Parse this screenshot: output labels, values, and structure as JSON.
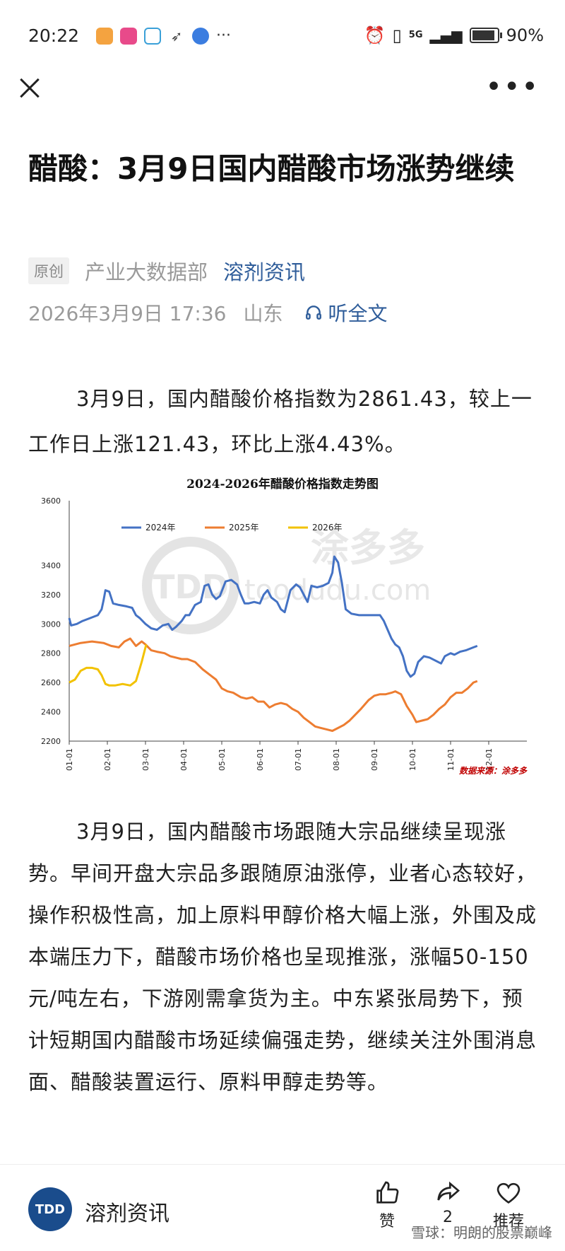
{
  "status_bar": {
    "time": "20:22",
    "network": "5G",
    "battery": "90%",
    "battery_level": 0.9
  },
  "article": {
    "title": "醋酸：3月9日国内醋酸市场涨势继续",
    "tag": "原创",
    "department": "产业大数据部",
    "source": "溶剂资讯",
    "date": "2026年3月9日 17:36",
    "location": "山东",
    "listen_label": "听全文",
    "para1": "3月9日，国内醋酸价格指数为2861.43，较上一工作日上涨121.43，环比上涨4.43%。",
    "para2": "3月9日，国内醋酸市场跟随大宗品继续呈现涨势。早间开盘大宗品多跟随原油涨停，业者心态较好，操作积极性高，加上原料甲醇价格大幅上涨，外围及成本端压力下，醋酸市场价格也呈现推涨，涨幅50-150元/吨左右，下游刚需拿货为主。中东紧张局势下，预计短期国内醋酸市场延续偏强走势，继续关注外围消息面、醋酸装置运行、原料甲醇走势等。"
  },
  "chart_data": {
    "type": "line",
    "title": "2024-2026年醋酸价格指数走势图",
    "xlabel": "",
    "ylabel": "",
    "ylim": [
      2200,
      3600
    ],
    "yticks": [
      2200,
      2400,
      2600,
      2800,
      3000,
      3200,
      3400,
      3600
    ],
    "categories": [
      "01-01",
      "02-01",
      "03-01",
      "04-01",
      "05-01",
      "06-01",
      "07-01",
      "08-01",
      "09-01",
      "10-01",
      "11-01",
      "12-01"
    ],
    "x_domain": [
      0,
      12
    ],
    "legend_position": "top",
    "watermark": "toodudu.com",
    "watermark_cn": "涂多多",
    "source_note": "数据来源：涂多多",
    "series": [
      {
        "name": "2024年",
        "color": "#4472c4",
        "points": [
          [
            0,
            3040
          ],
          [
            0.05,
            2990
          ],
          [
            0.2,
            3000
          ],
          [
            0.35,
            3020
          ],
          [
            0.55,
            3040
          ],
          [
            0.75,
            3060
          ],
          [
            0.85,
            3100
          ],
          [
            0.9,
            3160
          ],
          [
            0.95,
            3230
          ],
          [
            1.05,
            3220
          ],
          [
            1.15,
            3140
          ],
          [
            1.3,
            3130
          ],
          [
            1.5,
            3120
          ],
          [
            1.65,
            3110
          ],
          [
            1.75,
            3060
          ],
          [
            1.85,
            3040
          ],
          [
            2.0,
            3000
          ],
          [
            2.15,
            2970
          ],
          [
            2.3,
            2960
          ],
          [
            2.45,
            2990
          ],
          [
            2.6,
            3000
          ],
          [
            2.7,
            2960
          ],
          [
            2.8,
            2980
          ],
          [
            2.95,
            3020
          ],
          [
            3.05,
            3060
          ],
          [
            3.15,
            3060
          ],
          [
            3.3,
            3130
          ],
          [
            3.45,
            3150
          ],
          [
            3.55,
            3260
          ],
          [
            3.65,
            3270
          ],
          [
            3.75,
            3200
          ],
          [
            3.85,
            3170
          ],
          [
            3.95,
            3190
          ],
          [
            4.1,
            3290
          ],
          [
            4.25,
            3300
          ],
          [
            4.4,
            3270
          ],
          [
            4.5,
            3200
          ],
          [
            4.6,
            3140
          ],
          [
            4.7,
            3140
          ],
          [
            4.85,
            3150
          ],
          [
            5.0,
            3140
          ],
          [
            5.1,
            3200
          ],
          [
            5.2,
            3230
          ],
          [
            5.3,
            3180
          ],
          [
            5.45,
            3150
          ],
          [
            5.55,
            3100
          ],
          [
            5.65,
            3080
          ],
          [
            5.8,
            3230
          ],
          [
            5.95,
            3270
          ],
          [
            6.05,
            3250
          ],
          [
            6.15,
            3200
          ],
          [
            6.25,
            3150
          ],
          [
            6.35,
            3260
          ],
          [
            6.5,
            3250
          ],
          [
            6.65,
            3260
          ],
          [
            6.8,
            3280
          ],
          [
            6.9,
            3350
          ],
          [
            6.95,
            3460
          ],
          [
            7.05,
            3420
          ],
          [
            7.15,
            3280
          ],
          [
            7.25,
            3100
          ],
          [
            7.4,
            3070
          ],
          [
            7.6,
            3060
          ],
          [
            7.85,
            3060
          ],
          [
            8.0,
            3060
          ],
          [
            8.15,
            3060
          ],
          [
            8.25,
            3020
          ],
          [
            8.35,
            2960
          ],
          [
            8.45,
            2900
          ],
          [
            8.55,
            2860
          ],
          [
            8.65,
            2840
          ],
          [
            8.75,
            2780
          ],
          [
            8.85,
            2680
          ],
          [
            8.95,
            2640
          ],
          [
            9.05,
            2660
          ],
          [
            9.15,
            2740
          ],
          [
            9.3,
            2780
          ],
          [
            9.45,
            2770
          ],
          [
            9.6,
            2750
          ],
          [
            9.75,
            2730
          ],
          [
            9.85,
            2780
          ],
          [
            10.0,
            2800
          ],
          [
            10.1,
            2790
          ],
          [
            10.25,
            2810
          ],
          [
            10.4,
            2820
          ],
          [
            10.6,
            2840
          ],
          [
            10.7,
            2850
          ]
        ]
      },
      {
        "name": "2025年",
        "color": "#ed7d31",
        "points": [
          [
            0,
            2850
          ],
          [
            0.3,
            2870
          ],
          [
            0.6,
            2880
          ],
          [
            0.9,
            2870
          ],
          [
            1.1,
            2850
          ],
          [
            1.3,
            2840
          ],
          [
            1.45,
            2880
          ],
          [
            1.6,
            2900
          ],
          [
            1.75,
            2850
          ],
          [
            1.9,
            2880
          ],
          [
            2.0,
            2860
          ],
          [
            2.15,
            2820
          ],
          [
            2.3,
            2810
          ],
          [
            2.5,
            2800
          ],
          [
            2.65,
            2780
          ],
          [
            2.8,
            2770
          ],
          [
            2.95,
            2760
          ],
          [
            3.1,
            2760
          ],
          [
            3.3,
            2740
          ],
          [
            3.5,
            2690
          ],
          [
            3.7,
            2650
          ],
          [
            3.85,
            2620
          ],
          [
            4.0,
            2560
          ],
          [
            4.15,
            2540
          ],
          [
            4.3,
            2530
          ],
          [
            4.5,
            2500
          ],
          [
            4.65,
            2490
          ],
          [
            4.8,
            2500
          ],
          [
            4.95,
            2470
          ],
          [
            5.1,
            2470
          ],
          [
            5.25,
            2430
          ],
          [
            5.4,
            2450
          ],
          [
            5.55,
            2460
          ],
          [
            5.7,
            2450
          ],
          [
            5.85,
            2420
          ],
          [
            6.0,
            2400
          ],
          [
            6.15,
            2360
          ],
          [
            6.3,
            2330
          ],
          [
            6.45,
            2300
          ],
          [
            6.6,
            2290
          ],
          [
            6.75,
            2280
          ],
          [
            6.9,
            2270
          ],
          [
            7.05,
            2290
          ],
          [
            7.2,
            2310
          ],
          [
            7.35,
            2340
          ],
          [
            7.5,
            2380
          ],
          [
            7.65,
            2420
          ],
          [
            7.85,
            2480
          ],
          [
            8.0,
            2510
          ],
          [
            8.15,
            2520
          ],
          [
            8.3,
            2520
          ],
          [
            8.45,
            2530
          ],
          [
            8.55,
            2540
          ],
          [
            8.7,
            2520
          ],
          [
            8.85,
            2440
          ],
          [
            9.0,
            2380
          ],
          [
            9.1,
            2330
          ],
          [
            9.25,
            2340
          ],
          [
            9.4,
            2350
          ],
          [
            9.55,
            2380
          ],
          [
            9.7,
            2420
          ],
          [
            9.85,
            2450
          ],
          [
            10.0,
            2500
          ],
          [
            10.15,
            2530
          ],
          [
            10.3,
            2530
          ],
          [
            10.45,
            2560
          ],
          [
            10.6,
            2600
          ],
          [
            10.7,
            2610
          ]
        ]
      },
      {
        "name": "2026年",
        "color": "#f2c200",
        "points": [
          [
            0,
            2600
          ],
          [
            0.15,
            2620
          ],
          [
            0.3,
            2680
          ],
          [
            0.45,
            2700
          ],
          [
            0.6,
            2700
          ],
          [
            0.75,
            2690
          ],
          [
            0.85,
            2650
          ],
          [
            0.95,
            2590
          ],
          [
            1.05,
            2580
          ],
          [
            1.2,
            2580
          ],
          [
            1.4,
            2590
          ],
          [
            1.6,
            2580
          ],
          [
            1.75,
            2610
          ],
          [
            1.82,
            2670
          ],
          [
            1.9,
            2740
          ],
          [
            1.98,
            2820
          ],
          [
            2.02,
            2860
          ]
        ]
      }
    ]
  },
  "bottom_bar": {
    "brand_logo": "TDD",
    "brand_name": "溶剂资讯",
    "like_label": "赞",
    "share_count": "2",
    "recommend_label": "推荐",
    "watermark": "雪球：明朗的股票巅峰"
  }
}
